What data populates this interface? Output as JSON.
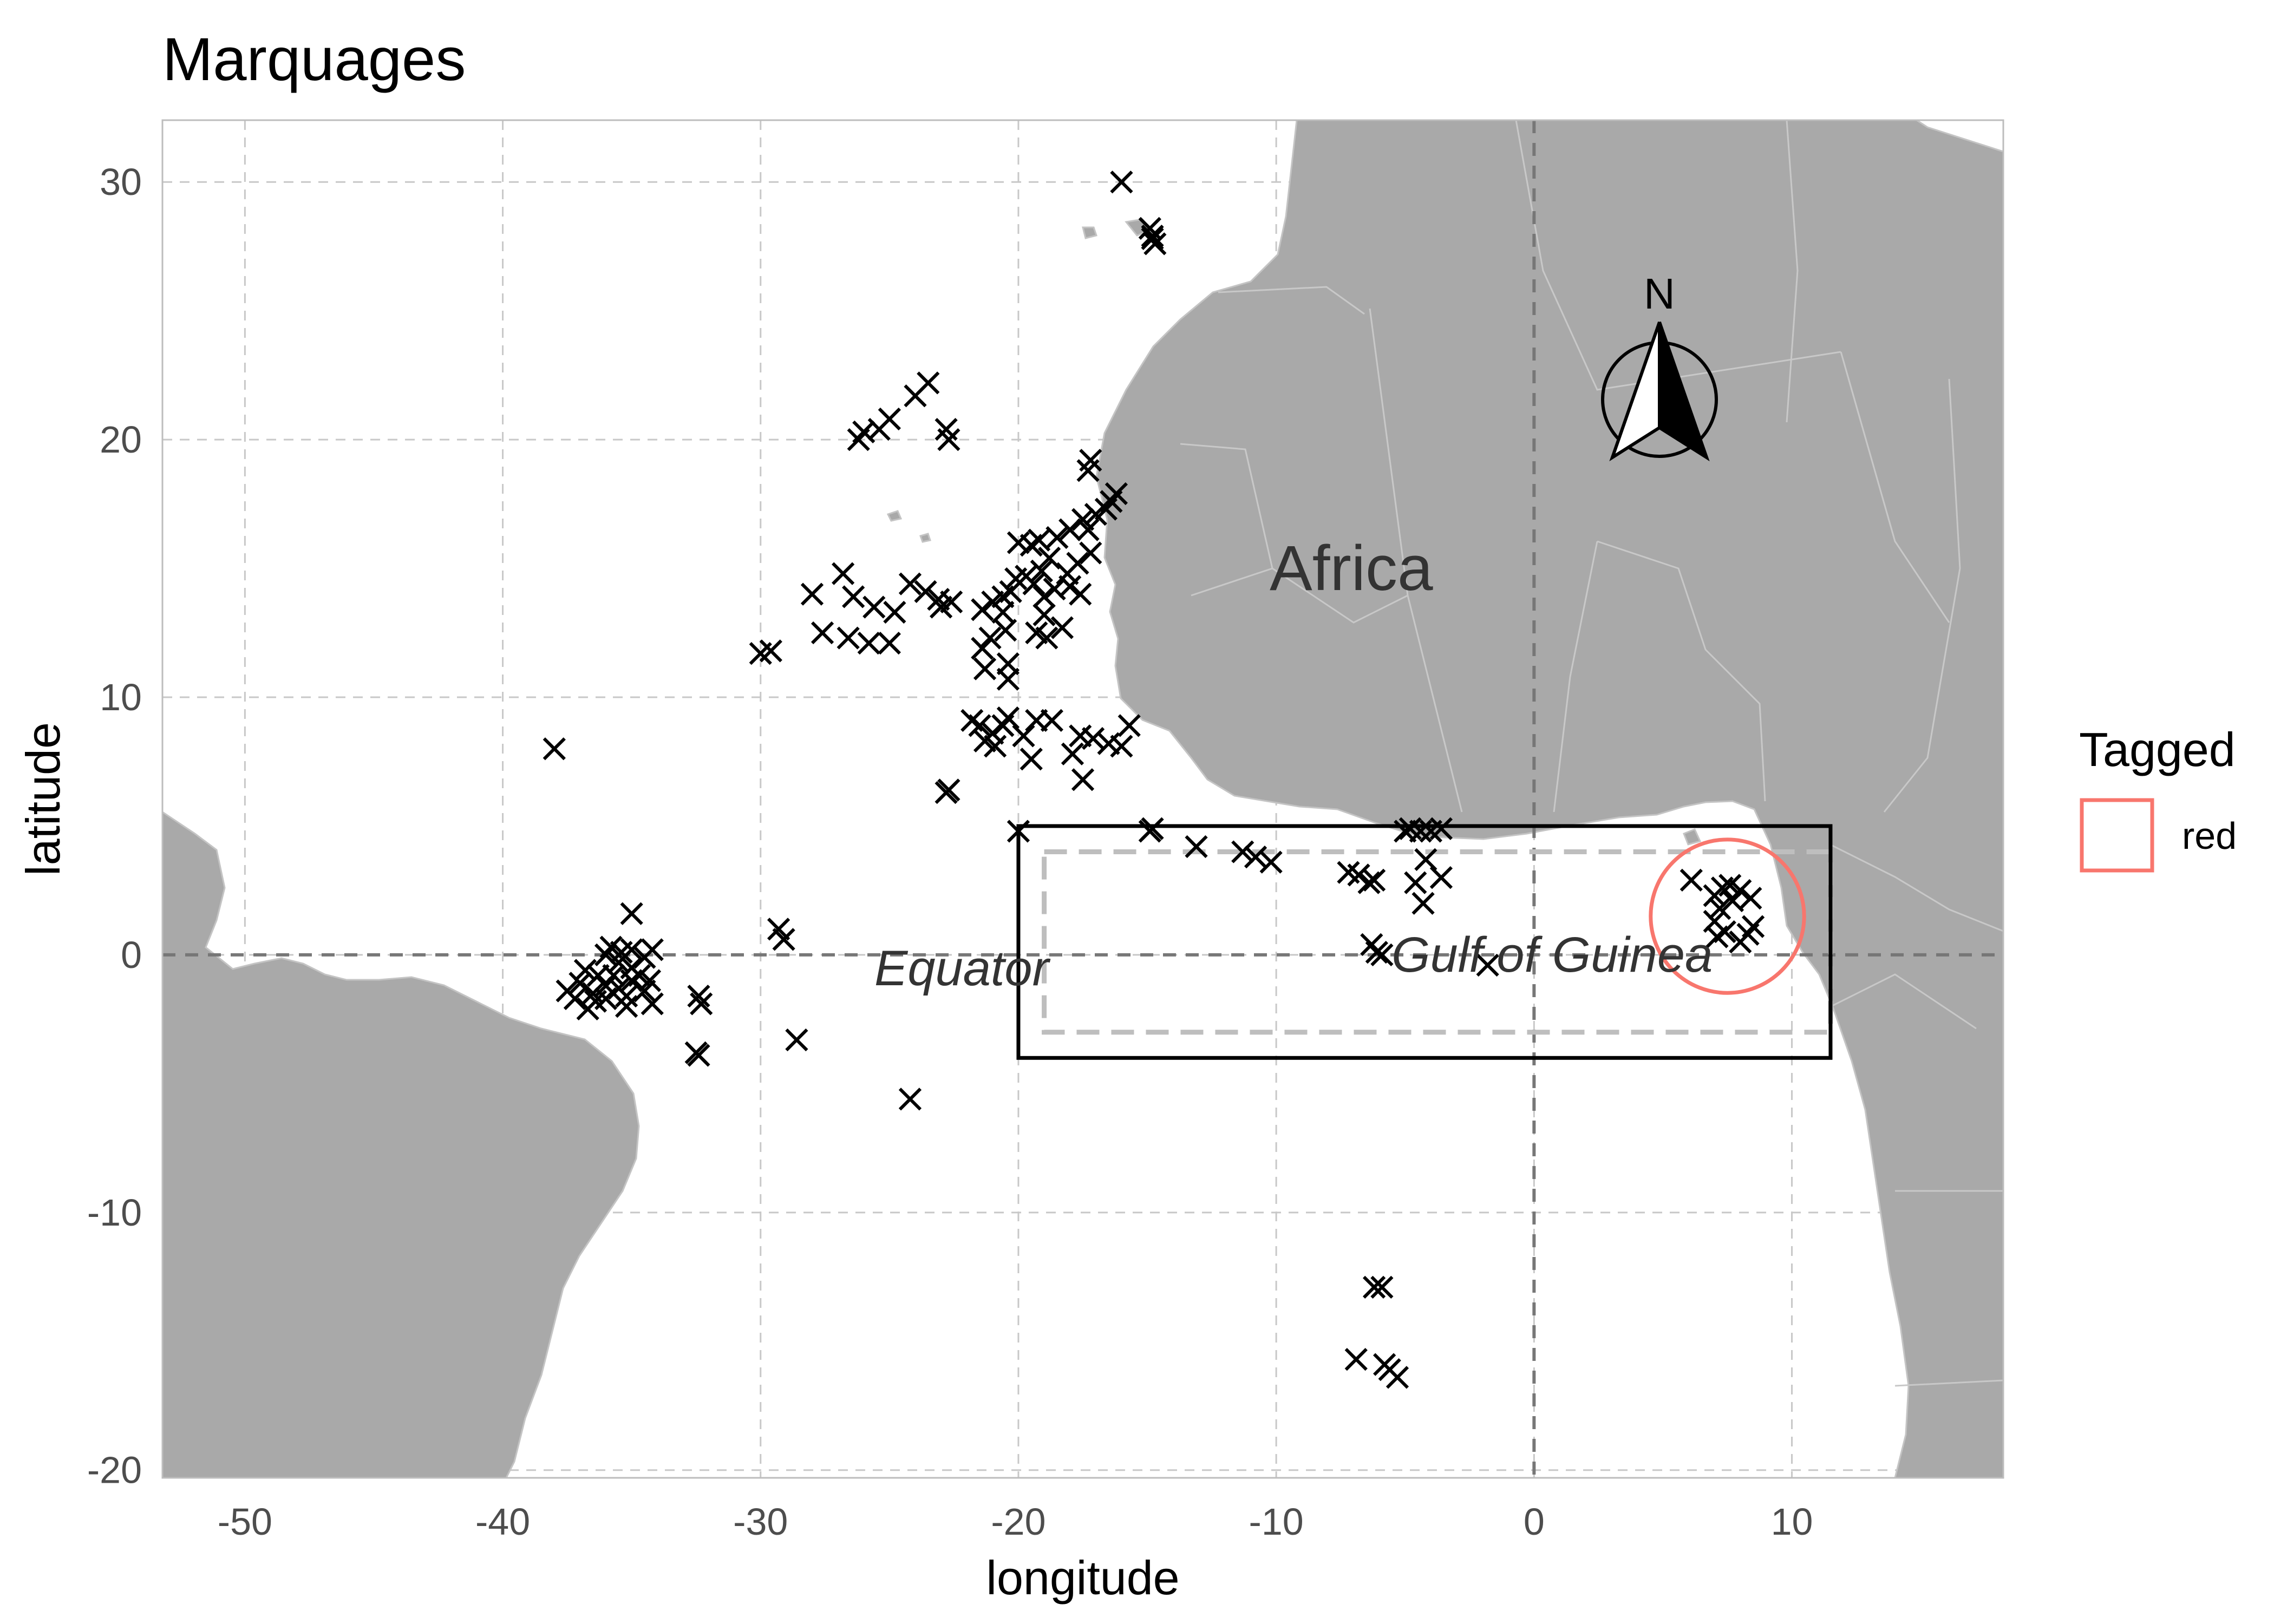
{
  "title": "Marquages",
  "axes": {
    "xlabel": "longitude",
    "ylabel": "latitude",
    "xlim": [
      -53.2,
      18.2
    ],
    "ylim": [
      -20.3,
      32.4
    ],
    "xticks": [
      -50,
      -40,
      -30,
      -20,
      -10,
      0,
      10
    ],
    "yticks": [
      -20,
      -10,
      0,
      10,
      20,
      30
    ],
    "grid": "dashed"
  },
  "labels": {
    "africa": "Africa",
    "equator": "Equator",
    "gulf": "Gulf of Guinea",
    "north": "N"
  },
  "legend": {
    "title": "Tagged",
    "entries": [
      {
        "label": "red",
        "color": "#F8766D"
      }
    ],
    "position": "right"
  },
  "colors": {
    "land": "#A9A9A9",
    "grid": "#C8C8C8",
    "reference_lines": "#777777",
    "study_box": "#000000",
    "inner_box": "#BEBEBE",
    "highlight_circle": "#F8766D",
    "points": "#000000"
  },
  "chart_data": {
    "type": "scatter",
    "title": "Marquages",
    "xlabel": "longitude",
    "ylabel": "latitude",
    "xlim": [
      -53.2,
      18.2
    ],
    "ylim": [
      -20.3,
      32.4
    ],
    "marker": "x",
    "reference_lines": {
      "latitude": 0,
      "longitude": 0
    },
    "study_box": {
      "lon": [
        -20,
        11.5
      ],
      "lat": [
        -4,
        5
      ]
    },
    "inner_box": {
      "lon": [
        -19,
        11.5
      ],
      "lat": [
        -3,
        4
      ]
    },
    "highlight_circle": {
      "lon": 7.5,
      "lat": 1.5,
      "radius_deg": 3.2,
      "legend": "red"
    },
    "points": [
      [
        -16,
        30
      ],
      [
        -14.9,
        28.2
      ],
      [
        -14.8,
        27.8
      ],
      [
        -14.7,
        27.6
      ],
      [
        -14.8,
        27.9
      ],
      [
        -23.5,
        22.2
      ],
      [
        -24,
        21.7
      ],
      [
        -25,
        20.8
      ],
      [
        -25.4,
        20.4
      ],
      [
        -26,
        20.3
      ],
      [
        -26.2,
        20
      ],
      [
        -22.8,
        20.4
      ],
      [
        -22.7,
        20
      ],
      [
        -17.2,
        19.2
      ],
      [
        -17.3,
        18.8
      ],
      [
        -16.2,
        17.9
      ],
      [
        -16.4,
        17.6
      ],
      [
        -16.6,
        17.3
      ],
      [
        -17,
        17.1
      ],
      [
        -17.5,
        16.9
      ],
      [
        -17.3,
        16.5
      ],
      [
        -18,
        16.5
      ],
      [
        -18.5,
        16.2
      ],
      [
        -19.2,
        16.1
      ],
      [
        -19.5,
        15.9
      ],
      [
        -20,
        16
      ],
      [
        -17.2,
        15.6
      ],
      [
        -17.7,
        15.2
      ],
      [
        -18.8,
        15.4
      ],
      [
        -19.1,
        14.9
      ],
      [
        -19.7,
        14.7
      ],
      [
        -20.1,
        14.6
      ],
      [
        -18.1,
        14.8
      ],
      [
        -18,
        14.3
      ],
      [
        -18.6,
        14.2
      ],
      [
        -19,
        13.9
      ],
      [
        -19.4,
        14.4
      ],
      [
        -20.3,
        14.1
      ],
      [
        -20.6,
        13.9
      ],
      [
        -21,
        13.7
      ],
      [
        -21.4,
        13.4
      ],
      [
        -20.6,
        13.3
      ],
      [
        -19,
        13.2
      ],
      [
        -17.6,
        14
      ],
      [
        -18.3,
        12.7
      ],
      [
        -18.9,
        12.3
      ],
      [
        -19.3,
        12.5
      ],
      [
        -20.5,
        12.6
      ],
      [
        -21.1,
        12.3
      ],
      [
        -21.4,
        11.9
      ],
      [
        -20.4,
        11.3
      ],
      [
        -20.4,
        10.7
      ],
      [
        -21.3,
        11.1
      ],
      [
        -26.8,
        14.8
      ],
      [
        -26.4,
        13.9
      ],
      [
        -25.6,
        13.5
      ],
      [
        -24.2,
        14.4
      ],
      [
        -23.6,
        14.1
      ],
      [
        -23.1,
        13.8
      ],
      [
        -23,
        13.5
      ],
      [
        -22.6,
        13.7
      ],
      [
        -24.8,
        13.3
      ],
      [
        -26.6,
        12.3
      ],
      [
        -25.8,
        12.1
      ],
      [
        -25,
        12.1
      ],
      [
        -27.6,
        12.5
      ],
      [
        -28,
        14
      ],
      [
        -29.6,
        11.8
      ],
      [
        -30,
        11.7
      ],
      [
        -20.4,
        9.2
      ],
      [
        -20.6,
        8.9
      ],
      [
        -21,
        8.6
      ],
      [
        -21.5,
        8.9
      ],
      [
        -21.8,
        9.1
      ],
      [
        -19.8,
        8.5
      ],
      [
        -19.3,
        9.1
      ],
      [
        -18.7,
        9.1
      ],
      [
        -21.3,
        8.3
      ],
      [
        -20.9,
        8.1
      ],
      [
        -19.5,
        7.6
      ],
      [
        -17.6,
        8.5
      ],
      [
        -17.1,
        8.4
      ],
      [
        -16.5,
        8.2
      ],
      [
        -16,
        8.1
      ],
      [
        -15.7,
        8.9
      ],
      [
        -17.9,
        7.8
      ],
      [
        -17.5,
        6.8
      ],
      [
        -22.8,
        6.3
      ],
      [
        -22.7,
        6.4
      ],
      [
        -38,
        8
      ],
      [
        -35,
        1.6
      ],
      [
        -36,
        0
      ],
      [
        -35.5,
        -0.3
      ],
      [
        -35,
        0.2
      ],
      [
        -34.5,
        -0.1
      ],
      [
        -34.2,
        0.2
      ],
      [
        -36.3,
        -0.8
      ],
      [
        -37,
        -1.1
      ],
      [
        -36.5,
        -1.5
      ],
      [
        -36,
        -1.7
      ],
      [
        -35.5,
        -1.3
      ],
      [
        -35,
        -1
      ],
      [
        -34.5,
        -1.4
      ],
      [
        -34.2,
        -1.9
      ],
      [
        -35.2,
        -2
      ],
      [
        -36,
        -1.2
      ],
      [
        -36.7,
        -2.1
      ],
      [
        -37.2,
        -1.7
      ],
      [
        -37.5,
        -1.4
      ],
      [
        -36.8,
        -0.6
      ],
      [
        -35.7,
        -0.8
      ],
      [
        -35,
        -0.5
      ],
      [
        -34.7,
        -0.8
      ],
      [
        -34.3,
        -1
      ],
      [
        -35.8,
        0.3
      ],
      [
        -35.4,
        0.1
      ],
      [
        -36.4,
        -1.8
      ],
      [
        -35.2,
        -1.6
      ],
      [
        -32.4,
        -1.6
      ],
      [
        -32.3,
        -1.9
      ],
      [
        -32.5,
        -3.8
      ],
      [
        -32.4,
        -3.9
      ],
      [
        -29.3,
        1
      ],
      [
        -29.1,
        0.6
      ],
      [
        -28.6,
        -3.3
      ],
      [
        -24.2,
        -5.6
      ],
      [
        -20,
        4.8
      ],
      [
        -14.8,
        4.9
      ],
      [
        -14.9,
        4.8
      ],
      [
        -13.1,
        4.2
      ],
      [
        -11.3,
        4
      ],
      [
        -10.8,
        3.8
      ],
      [
        -10.2,
        3.6
      ],
      [
        -7.2,
        3.2
      ],
      [
        -6.8,
        3.1
      ],
      [
        -6.4,
        2.8
      ],
      [
        -6.2,
        2.9
      ],
      [
        -4.6,
        2.8
      ],
      [
        -4.3,
        2
      ],
      [
        -3.6,
        3
      ],
      [
        -4.2,
        3.7
      ],
      [
        -4.8,
        4.9
      ],
      [
        -4.4,
        4.8
      ],
      [
        -4,
        4.8
      ],
      [
        -3.6,
        4.9
      ],
      [
        -5,
        4.8
      ],
      [
        -6.3,
        0.4
      ],
      [
        -6.1,
        0.1
      ],
      [
        -5.9,
        0
      ],
      [
        -1.8,
        -0.4
      ],
      [
        6.1,
        2.9
      ],
      [
        7,
        2.3
      ],
      [
        7.3,
        2.6
      ],
      [
        7.6,
        2.7
      ],
      [
        8,
        2.5
      ],
      [
        8.4,
        2.2
      ],
      [
        7.2,
        1.8
      ],
      [
        7,
        1.3
      ],
      [
        7.4,
        0.9
      ],
      [
        8,
        0.5
      ],
      [
        8.3,
        0.8
      ],
      [
        8.5,
        1.1
      ],
      [
        7.1,
        0.7
      ],
      [
        7.7,
        2.1
      ],
      [
        -6.2,
        -12.9
      ],
      [
        -5.9,
        -12.9
      ],
      [
        -6.9,
        -15.7
      ],
      [
        -5.8,
        -15.9
      ],
      [
        -5.6,
        -16.1
      ],
      [
        -5.3,
        -16.4
      ]
    ]
  }
}
